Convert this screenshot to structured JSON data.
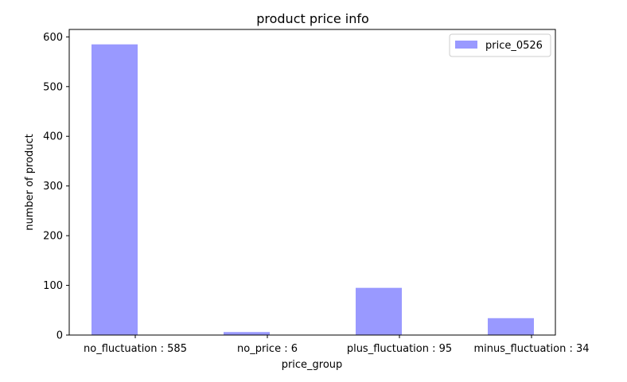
{
  "chart_data": {
    "type": "bar",
    "title": "product price info",
    "xlabel": "price_group",
    "ylabel": "number of product",
    "categories": [
      "no_fluctuation : 585",
      "no_price : 6",
      "plus_fluctuation : 95",
      "minus_fluctuation : 34"
    ],
    "series": [
      {
        "name": "price_0526",
        "values": [
          585,
          6,
          95,
          34
        ],
        "color": "#9999ff"
      }
    ],
    "ylim": [
      0,
      615
    ],
    "yticks": [
      0,
      100,
      200,
      300,
      400,
      500,
      600
    ],
    "grid": false,
    "legend_position": "top-right"
  }
}
